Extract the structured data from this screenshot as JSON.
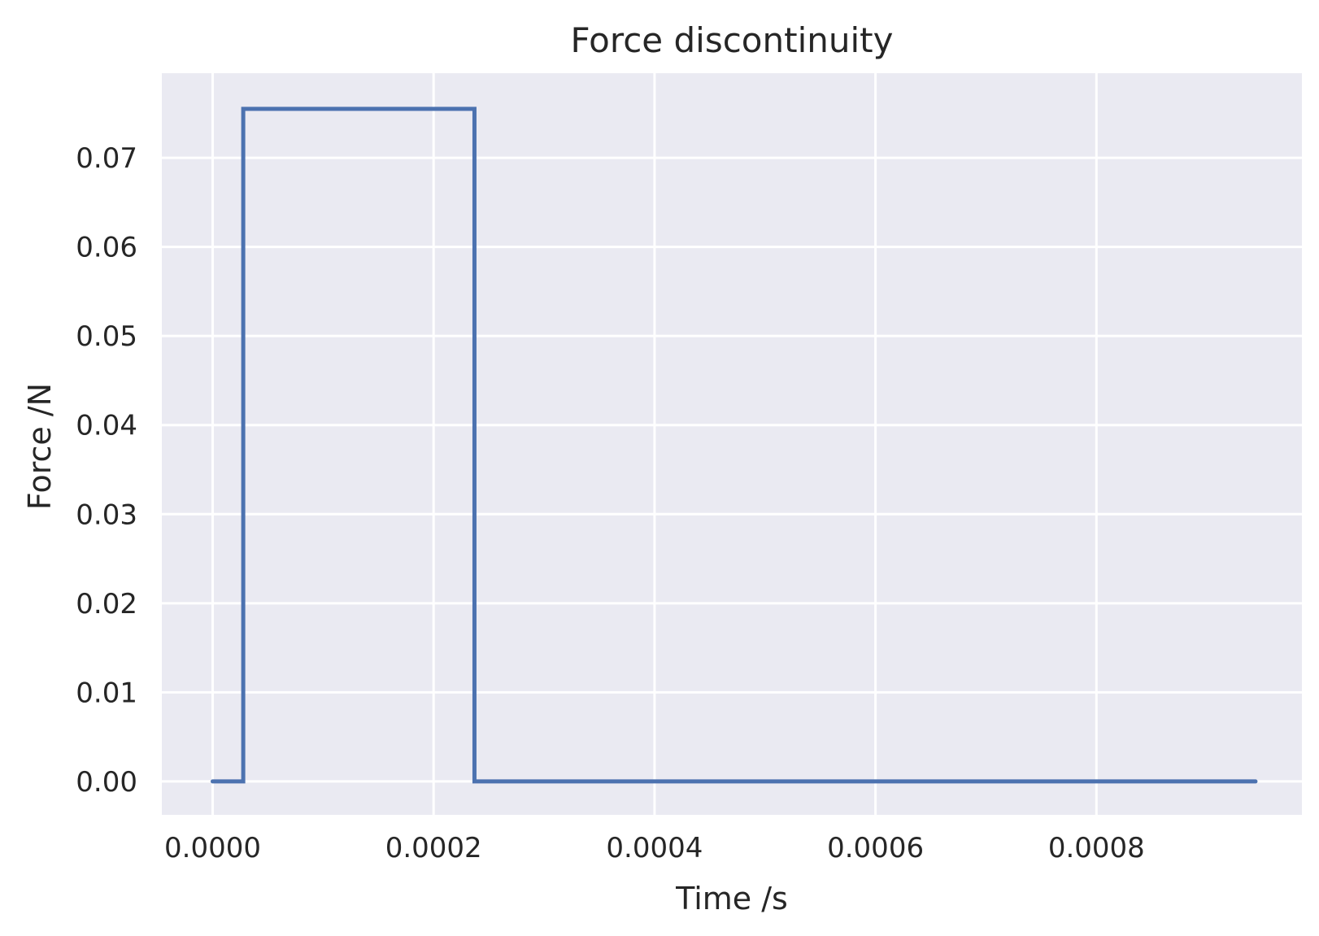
{
  "chart_data": {
    "type": "line",
    "title": "Force discontinuity",
    "xlabel": "Time /s",
    "ylabel": "Force /N",
    "xlim": [
      -4.6e-05,
      0.000986
    ],
    "ylim": [
      -0.00375,
      0.0795
    ],
    "x_ticks": [
      0.0,
      0.0002,
      0.0004,
      0.0006,
      0.0008
    ],
    "x_tick_labels": [
      "0.0000",
      "0.0002",
      "0.0004",
      "0.0006",
      "0.0008"
    ],
    "y_ticks": [
      0.0,
      0.01,
      0.02,
      0.03,
      0.04,
      0.05,
      0.06,
      0.07
    ],
    "y_tick_labels": [
      "0.00",
      "0.01",
      "0.02",
      "0.03",
      "0.04",
      "0.05",
      "0.06",
      "0.07"
    ],
    "grid": true,
    "series": [
      {
        "color": "#4c72b0",
        "x": [
          0.0,
          2.77e-05,
          2.77e-05,
          0.000237,
          0.000237,
          0.000944
        ],
        "y": [
          0.0,
          0.0,
          0.0755,
          0.0755,
          0.0,
          0.0
        ]
      }
    ]
  },
  "colors": {
    "plot_background": "#eaeaf2",
    "grid": "#ffffff",
    "series": "#4c72b0",
    "text": "#262626"
  }
}
